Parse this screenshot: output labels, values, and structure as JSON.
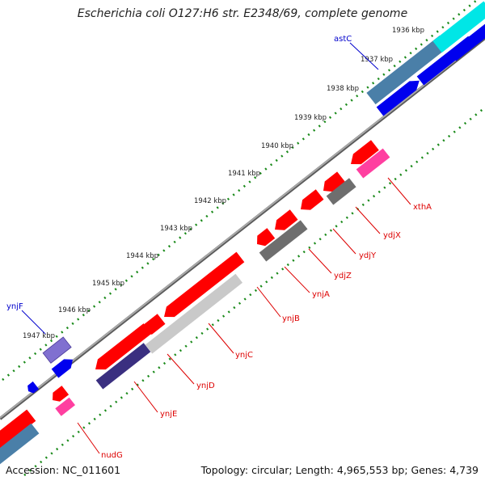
{
  "title": "Escherichia coli O127:H6 str. E2348/69, complete genome",
  "accession": "Accession: NC_011601",
  "topology": "Topology: circular; Length: 4,965,553 bp; Genes: 4,739",
  "colors": {
    "backbone": "#7f7f7f",
    "gc_tick": "#1a8a1a",
    "gene_forward_label": "#0000cc",
    "gene_reverse_label": "#dd0000",
    "cds_red": "#ff0000",
    "cds_blue": "#0000ee",
    "cds_cyan": "#00e6e6",
    "cds_steel": "#4a7fa8",
    "cds_darkblue": "#3a2f80",
    "cds_gray": "#6e6e6e",
    "cds_lightgray": "#c9c9c9",
    "cds_magenta": "#ff3fa0",
    "cds_purple": "#8070d0"
  },
  "scale_ticks": [
    "1936 kbp",
    "1937 kbp",
    "1938 kbp",
    "1939 kbp",
    "1940 kbp",
    "1941 kbp",
    "1942 kbp",
    "1943 kbp",
    "1944 kbp",
    "1945 kbp",
    "1946 kbp",
    "1947 kbp"
  ],
  "genes_forward": [
    "astC",
    "ynjF"
  ],
  "genes_reverse": [
    "xthA",
    "ydjX",
    "ydjY",
    "ydjZ",
    "ynjA",
    "ynjB",
    "ynjC",
    "ynjD",
    "ynjE",
    "nudG"
  ]
}
